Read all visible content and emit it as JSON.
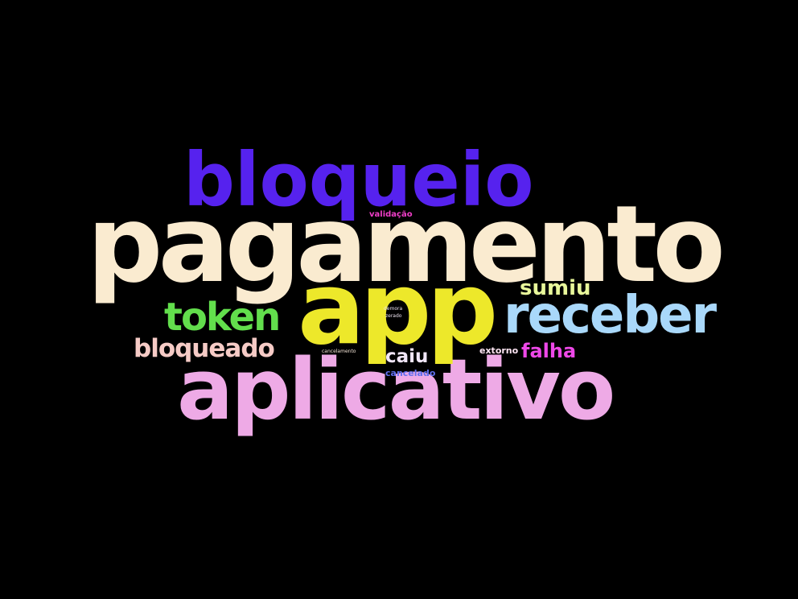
{
  "background": "#000000",
  "words": [
    {
      "key": "pagamento",
      "text": "pagamento",
      "color": "#faebd0"
    },
    {
      "key": "aplicativo",
      "text": "aplicativo",
      "color": "#eeaae6"
    },
    {
      "key": "app",
      "text": "app",
      "color": "#ede82a"
    },
    {
      "key": "bloqueio",
      "text": "bloqueio",
      "color": "#5622ee"
    },
    {
      "key": "receber",
      "text": "receber",
      "color": "#a9d8fa"
    },
    {
      "key": "token",
      "text": "token",
      "color": "#62de4c"
    },
    {
      "key": "bloqueado",
      "text": "bloqueado",
      "color": "#f6cbc6"
    },
    {
      "key": "sumiu",
      "text": "sumiu",
      "color": "#e8f79a"
    },
    {
      "key": "falha",
      "text": "falha",
      "color": "#ee48e8"
    },
    {
      "key": "caiu",
      "text": "caiu",
      "color": "#f1e6f8"
    },
    {
      "key": "extorno",
      "text": "extorno",
      "color": "#ffe6f4"
    },
    {
      "key": "validacao",
      "text": "validação",
      "color": "#f03ec8"
    },
    {
      "key": "cancelado",
      "text": "cancelado",
      "color": "#5f6eec"
    },
    {
      "key": "cancelamento",
      "text": "cancelamento",
      "color": "#f3e4d6"
    },
    {
      "key": "demora",
      "text": "demora",
      "color": "#ece2ee"
    },
    {
      "key": "zerado",
      "text": "zerado",
      "color": "#ece2ee"
    }
  ]
}
